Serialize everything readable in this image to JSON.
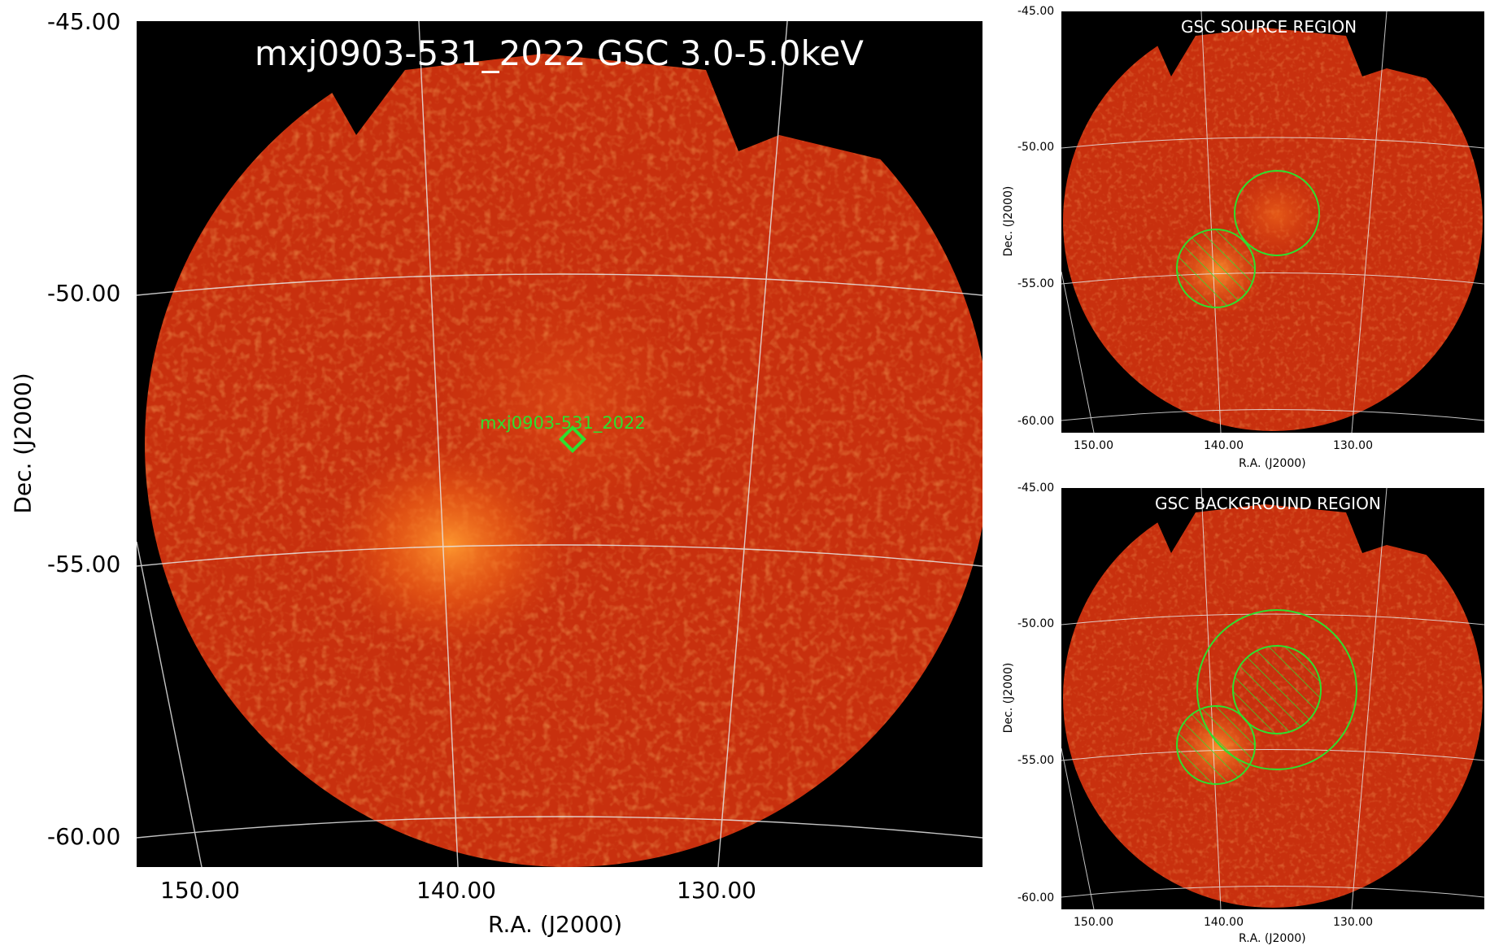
{
  "main": {
    "title": "mxj0903-531_2022 GSC 3.0-5.0keV",
    "source_label": "mxj0903-531_2022",
    "xlabel": "R.A. (J2000)",
    "ylabel": "Dec. (J2000)",
    "yticks": [
      "-45.00",
      "-50.00",
      "-55.00",
      "-60.00"
    ],
    "xticks": [
      "150.00",
      "140.00",
      "130.00"
    ]
  },
  "top_right": {
    "title": "GSC SOURCE REGION",
    "xlabel": "R.A. (J2000)",
    "ylabel": "Dec. (J2000)",
    "yticks": [
      "-45.00",
      "-50.00",
      "-55.00",
      "-60.00"
    ],
    "xticks": [
      "150.00",
      "140.00",
      "130.00"
    ]
  },
  "bottom_right": {
    "title": "GSC BACKGROUND REGION",
    "xlabel": "R.A. (J2000)",
    "ylabel": "Dec. (J2000)",
    "yticks": [
      "-45.00",
      "-50.00",
      "-55.00",
      "-60.00"
    ],
    "xticks": [
      "150.00",
      "140.00",
      "130.00"
    ]
  },
  "colors": {
    "background": "#000000",
    "image_base": "#c52a0c",
    "image_bright": "#ff8a2a",
    "grid": "#e6e6e6",
    "region": "#2ee02e",
    "label_text": "#ffffff"
  }
}
